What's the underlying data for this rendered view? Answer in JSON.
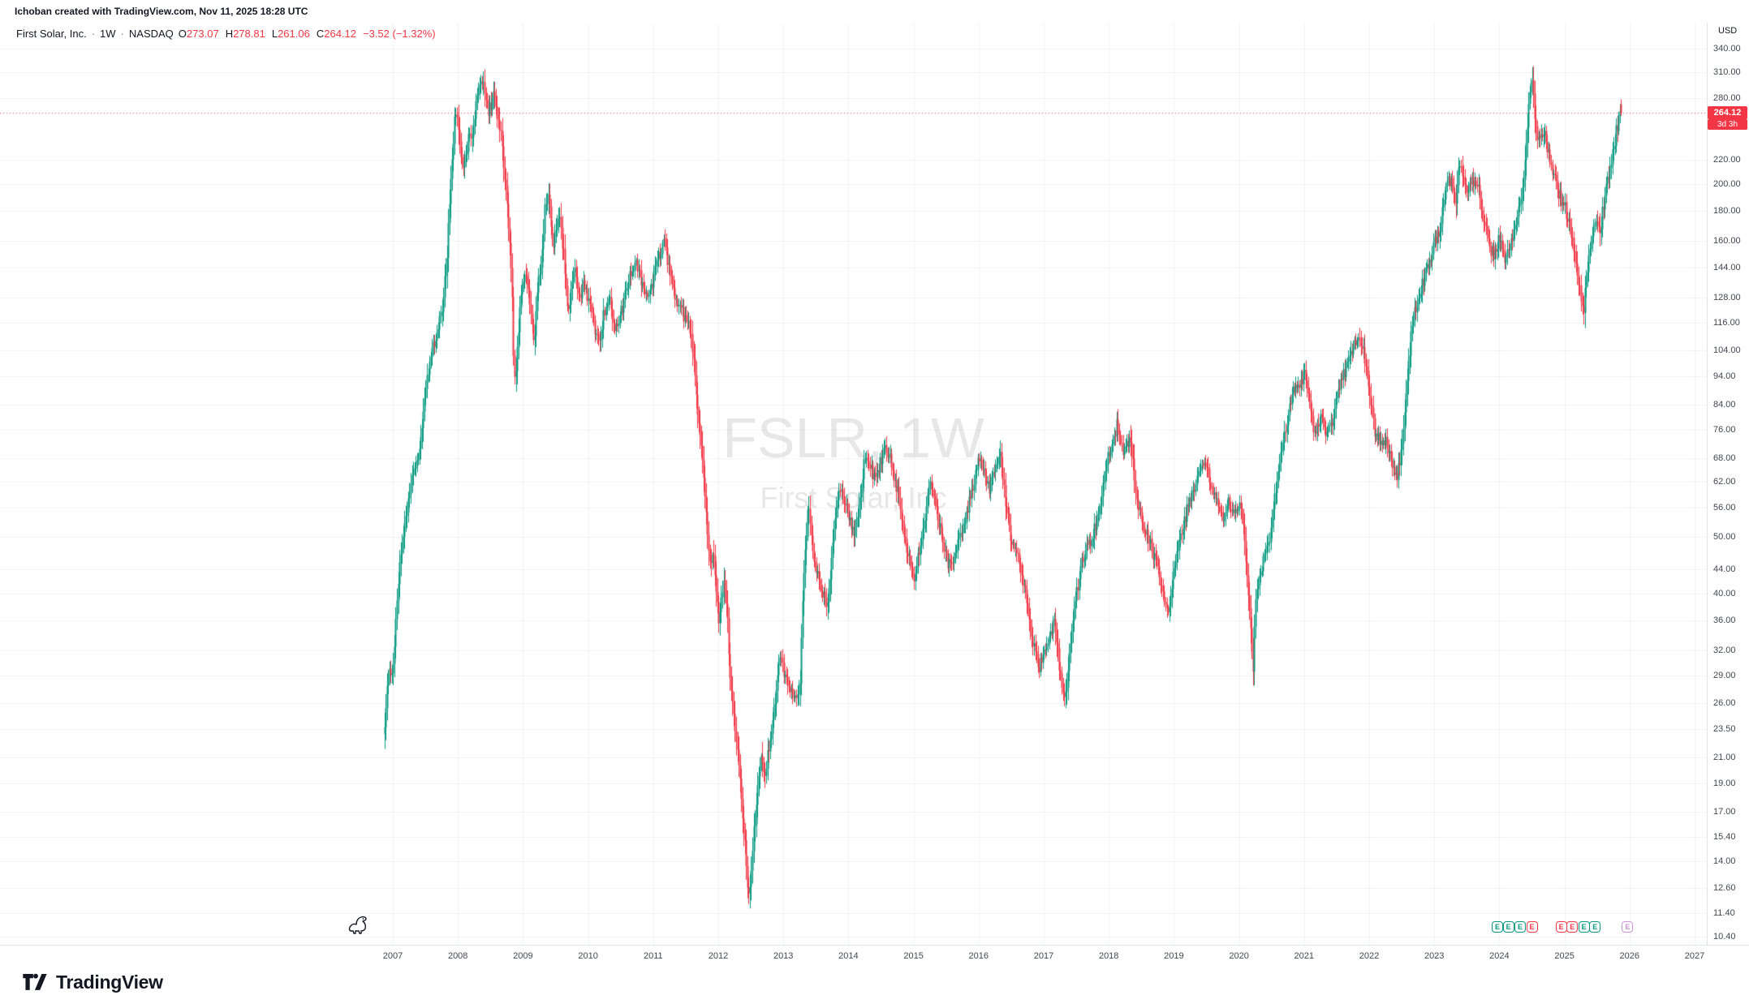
{
  "attribution": "Ichoban created with TradingView.com, Nov 11, 2025 18:28 UTC",
  "legend": {
    "symbol": "First Solar, Inc.",
    "sep": "·",
    "interval": "1W",
    "exchange": "NASDAQ",
    "o_label": "O",
    "o": "273.07",
    "h_label": "H",
    "h": "278.81",
    "l_label": "L",
    "l": "261.06",
    "c_label": "C",
    "c": "264.12",
    "change": "−3.52 (−1.32%)"
  },
  "watermark": {
    "line1": "FSLR, 1W",
    "line2": "First Solar, Inc"
  },
  "price_axis": {
    "currency": "USD",
    "ticks": [
      "340.00",
      "310.00",
      "280.00",
      "220.00",
      "200.00",
      "180.00",
      "160.00",
      "144.00",
      "128.00",
      "116.00",
      "104.00",
      "94.00",
      "84.00",
      "76.00",
      "68.00",
      "62.00",
      "56.00",
      "50.00",
      "44.00",
      "40.00",
      "36.00",
      "32.00",
      "29.00",
      "26.00",
      "23.50",
      "21.00",
      "19.00",
      "17.00",
      "15.40",
      "14.00",
      "12.60",
      "11.40",
      "10.40"
    ],
    "last_price": "264.12",
    "countdown": "3d 3h"
  },
  "time_axis": {
    "years": [
      "2007",
      "2008",
      "2009",
      "2010",
      "2011",
      "2012",
      "2013",
      "2014",
      "2015",
      "2016",
      "2017",
      "2018",
      "2019",
      "2020",
      "2021",
      "2022",
      "2023",
      "2024",
      "2025",
      "2026",
      "2027"
    ]
  },
  "earnings_markers": [
    {
      "t": 2023.97,
      "label": "E",
      "color": "#089981"
    },
    {
      "t": 2024.14,
      "label": "E",
      "color": "#089981"
    },
    {
      "t": 2024.32,
      "label": "E",
      "color": "#089981"
    },
    {
      "t": 2024.5,
      "label": "E",
      "color": "#f23645"
    },
    {
      "t": 2024.95,
      "label": "E",
      "color": "#f23645"
    },
    {
      "t": 2025.12,
      "label": "E",
      "color": "#f23645"
    },
    {
      "t": 2025.3,
      "label": "E",
      "color": "#089981"
    },
    {
      "t": 2025.47,
      "label": "E",
      "color": "#089981"
    },
    {
      "t": 2025.97,
      "label": "E",
      "color": "#ce93d8"
    }
  ],
  "footer": {
    "brand": "TradingView"
  },
  "colors": {
    "up": "#089981",
    "down": "#f23645",
    "accent_red": "#f23645",
    "grid": "rgba(42,46,57,0.06)",
    "axis_divider": "#e0e3eb",
    "axis_text": "#434651"
  },
  "chart_data": {
    "type": "candlestick",
    "symbol": "FSLR",
    "name": "First Solar, Inc.",
    "interval": "1W",
    "exchange": "NASDAQ",
    "currency": "USD",
    "scale": "log",
    "grid": true,
    "y_range": [
      10.4,
      340
    ],
    "x_range_years": [
      2006.6,
      2027.3
    ],
    "last_bar": {
      "open": 273.07,
      "high": 278.81,
      "low": 261.06,
      "close": 264.12,
      "change": -3.52,
      "change_pct": -1.32
    },
    "last_price": 264.12,
    "countdown": "3d 3h",
    "price_path": [
      [
        2006.87,
        24
      ],
      [
        2006.9,
        27
      ],
      [
        2006.94,
        29
      ],
      [
        2007.0,
        30
      ],
      [
        2007.08,
        42
      ],
      [
        2007.17,
        52
      ],
      [
        2007.25,
        60
      ],
      [
        2007.33,
        66
      ],
      [
        2007.42,
        72
      ],
      [
        2007.5,
        89
      ],
      [
        2007.58,
        100
      ],
      [
        2007.67,
        112
      ],
      [
        2007.75,
        121
      ],
      [
        2007.83,
        150
      ],
      [
        2007.88,
        200
      ],
      [
        2007.92,
        235
      ],
      [
        2007.96,
        265
      ],
      [
        2008.0,
        258
      ],
      [
        2008.04,
        225
      ],
      [
        2008.08,
        215
      ],
      [
        2008.13,
        230
      ],
      [
        2008.17,
        240
      ],
      [
        2008.21,
        236
      ],
      [
        2008.25,
        262
      ],
      [
        2008.29,
        275
      ],
      [
        2008.33,
        290
      ],
      [
        2008.38,
        308
      ],
      [
        2008.42,
        283
      ],
      [
        2008.46,
        265
      ],
      [
        2008.5,
        272
      ],
      [
        2008.54,
        288
      ],
      [
        2008.58,
        270
      ],
      [
        2008.63,
        252
      ],
      [
        2008.67,
        235
      ],
      [
        2008.71,
        210
      ],
      [
        2008.75,
        188
      ],
      [
        2008.79,
        160
      ],
      [
        2008.83,
        128
      ],
      [
        2008.85,
        100
      ],
      [
        2008.88,
        92
      ],
      [
        2008.92,
        110
      ],
      [
        2008.96,
        130
      ],
      [
        2009.0,
        138
      ],
      [
        2009.04,
        142
      ],
      [
        2009.08,
        134
      ],
      [
        2009.13,
        118
      ],
      [
        2009.17,
        108
      ],
      [
        2009.21,
        130
      ],
      [
        2009.25,
        140
      ],
      [
        2009.29,
        152
      ],
      [
        2009.33,
        182
      ],
      [
        2009.38,
        195
      ],
      [
        2009.42,
        172
      ],
      [
        2009.46,
        158
      ],
      [
        2009.5,
        165
      ],
      [
        2009.54,
        178
      ],
      [
        2009.58,
        168
      ],
      [
        2009.63,
        148
      ],
      [
        2009.67,
        125
      ],
      [
        2009.71,
        122
      ],
      [
        2009.75,
        135
      ],
      [
        2009.79,
        144
      ],
      [
        2009.83,
        132
      ],
      [
        2009.88,
        125
      ],
      [
        2009.92,
        134
      ],
      [
        2010.0,
        128
      ],
      [
        2010.08,
        115
      ],
      [
        2010.17,
        105
      ],
      [
        2010.25,
        122
      ],
      [
        2010.33,
        128
      ],
      [
        2010.42,
        112
      ],
      [
        2010.5,
        120
      ],
      [
        2010.58,
        132
      ],
      [
        2010.67,
        142
      ],
      [
        2010.75,
        146
      ],
      [
        2010.83,
        134
      ],
      [
        2010.92,
        130
      ],
      [
        2011.0,
        138
      ],
      [
        2011.08,
        152
      ],
      [
        2011.17,
        158
      ],
      [
        2011.25,
        142
      ],
      [
        2011.33,
        128
      ],
      [
        2011.42,
        122
      ],
      [
        2011.5,
        118
      ],
      [
        2011.58,
        112
      ],
      [
        2011.63,
        95
      ],
      [
        2011.67,
        82
      ],
      [
        2011.75,
        68
      ],
      [
        2011.83,
        52
      ],
      [
        2011.88,
        44
      ],
      [
        2011.92,
        48
      ],
      [
        2011.96,
        42
      ],
      [
        2012.0,
        36
      ],
      [
        2012.08,
        42
      ],
      [
        2012.13,
        38
      ],
      [
        2012.17,
        30
      ],
      [
        2012.25,
        24
      ],
      [
        2012.33,
        19
      ],
      [
        2012.42,
        14.5
      ],
      [
        2012.46,
        11.9
      ],
      [
        2012.5,
        13.5
      ],
      [
        2012.54,
        15.5
      ],
      [
        2012.58,
        17.5
      ],
      [
        2012.63,
        20
      ],
      [
        2012.67,
        21.5
      ],
      [
        2012.71,
        19.5
      ],
      [
        2012.75,
        21
      ],
      [
        2012.83,
        24
      ],
      [
        2012.88,
        26.5
      ],
      [
        2012.92,
        30
      ],
      [
        2012.96,
        31.5
      ],
      [
        2013.0,
        29.5
      ],
      [
        2013.08,
        28
      ],
      [
        2013.17,
        26
      ],
      [
        2013.25,
        27.5
      ],
      [
        2013.29,
        39
      ],
      [
        2013.33,
        46
      ],
      [
        2013.38,
        57
      ],
      [
        2013.42,
        50
      ],
      [
        2013.46,
        46
      ],
      [
        2013.5,
        44
      ],
      [
        2013.58,
        41
      ],
      [
        2013.67,
        38
      ],
      [
        2013.75,
        47
      ],
      [
        2013.83,
        58
      ],
      [
        2013.88,
        62
      ],
      [
        2013.92,
        59
      ],
      [
        2014.0,
        54
      ],
      [
        2014.08,
        50
      ],
      [
        2014.17,
        57
      ],
      [
        2014.25,
        69
      ],
      [
        2014.33,
        66
      ],
      [
        2014.42,
        62
      ],
      [
        2014.5,
        68
      ],
      [
        2014.58,
        71
      ],
      [
        2014.67,
        66
      ],
      [
        2014.75,
        60
      ],
      [
        2014.83,
        52
      ],
      [
        2014.92,
        46
      ],
      [
        2015.0,
        42
      ],
      [
        2015.08,
        47
      ],
      [
        2015.17,
        54
      ],
      [
        2015.25,
        61
      ],
      [
        2015.33,
        57
      ],
      [
        2015.42,
        51
      ],
      [
        2015.5,
        46
      ],
      [
        2015.58,
        44
      ],
      [
        2015.67,
        48
      ],
      [
        2015.75,
        52
      ],
      [
        2015.83,
        56
      ],
      [
        2015.92,
        62
      ],
      [
        2016.0,
        68
      ],
      [
        2016.08,
        64
      ],
      [
        2016.17,
        60
      ],
      [
        2016.25,
        66
      ],
      [
        2016.33,
        69
      ],
      [
        2016.42,
        56
      ],
      [
        2016.5,
        49
      ],
      [
        2016.58,
        47
      ],
      [
        2016.67,
        42
      ],
      [
        2016.75,
        38
      ],
      [
        2016.83,
        33
      ],
      [
        2016.92,
        30
      ],
      [
        2017.0,
        32
      ],
      [
        2017.08,
        34
      ],
      [
        2017.17,
        36
      ],
      [
        2017.25,
        29
      ],
      [
        2017.33,
        26.5
      ],
      [
        2017.42,
        34
      ],
      [
        2017.5,
        40
      ],
      [
        2017.58,
        45
      ],
      [
        2017.67,
        48
      ],
      [
        2017.75,
        50
      ],
      [
        2017.83,
        55
      ],
      [
        2017.92,
        62
      ],
      [
        2018.0,
        70
      ],
      [
        2018.08,
        74
      ],
      [
        2018.13,
        78
      ],
      [
        2018.17,
        72
      ],
      [
        2018.25,
        70
      ],
      [
        2018.33,
        74
      ],
      [
        2018.42,
        58
      ],
      [
        2018.5,
        53
      ],
      [
        2018.58,
        51
      ],
      [
        2018.67,
        47
      ],
      [
        2018.75,
        44
      ],
      [
        2018.83,
        40
      ],
      [
        2018.92,
        37
      ],
      [
        2019.0,
        44
      ],
      [
        2019.08,
        50
      ],
      [
        2019.17,
        54
      ],
      [
        2019.25,
        58
      ],
      [
        2019.33,
        62
      ],
      [
        2019.42,
        65
      ],
      [
        2019.5,
        67
      ],
      [
        2019.58,
        60
      ],
      [
        2019.67,
        57
      ],
      [
        2019.75,
        54
      ],
      [
        2019.83,
        57
      ],
      [
        2019.92,
        55
      ],
      [
        2020.0,
        57
      ],
      [
        2020.08,
        50
      ],
      [
        2020.17,
        36
      ],
      [
        2020.21,
        29
      ],
      [
        2020.25,
        38
      ],
      [
        2020.33,
        44
      ],
      [
        2020.42,
        47
      ],
      [
        2020.5,
        52
      ],
      [
        2020.58,
        63
      ],
      [
        2020.67,
        72
      ],
      [
        2020.75,
        80
      ],
      [
        2020.83,
        88
      ],
      [
        2020.92,
        90
      ],
      [
        2021.0,
        96
      ],
      [
        2021.08,
        84
      ],
      [
        2021.17,
        74
      ],
      [
        2021.25,
        80
      ],
      [
        2021.33,
        76
      ],
      [
        2021.42,
        78
      ],
      [
        2021.5,
        88
      ],
      [
        2021.58,
        94
      ],
      [
        2021.67,
        99
      ],
      [
        2021.75,
        106
      ],
      [
        2021.83,
        110
      ],
      [
        2021.92,
        102
      ],
      [
        2022.0,
        88
      ],
      [
        2022.08,
        76
      ],
      [
        2022.17,
        72
      ],
      [
        2022.25,
        74
      ],
      [
        2022.33,
        68
      ],
      [
        2022.42,
        63
      ],
      [
        2022.5,
        70
      ],
      [
        2022.58,
        94
      ],
      [
        2022.67,
        118
      ],
      [
        2022.75,
        128
      ],
      [
        2022.83,
        136
      ],
      [
        2022.92,
        148
      ],
      [
        2023.0,
        158
      ],
      [
        2023.08,
        166
      ],
      [
        2023.17,
        196
      ],
      [
        2023.25,
        204
      ],
      [
        2023.33,
        188
      ],
      [
        2023.38,
        222
      ],
      [
        2023.42,
        214
      ],
      [
        2023.5,
        192
      ],
      [
        2023.58,
        206
      ],
      [
        2023.67,
        196
      ],
      [
        2023.75,
        176
      ],
      [
        2023.83,
        158
      ],
      [
        2023.92,
        150
      ],
      [
        2024.0,
        164
      ],
      [
        2024.08,
        148
      ],
      [
        2024.17,
        158
      ],
      [
        2024.25,
        172
      ],
      [
        2024.33,
        186
      ],
      [
        2024.42,
        238
      ],
      [
        2024.46,
        290
      ],
      [
        2024.5,
        300
      ],
      [
        2024.54,
        268
      ],
      [
        2024.58,
        232
      ],
      [
        2024.67,
        248
      ],
      [
        2024.75,
        224
      ],
      [
        2024.83,
        208
      ],
      [
        2024.92,
        192
      ],
      [
        2025.0,
        182
      ],
      [
        2025.08,
        168
      ],
      [
        2025.17,
        148
      ],
      [
        2025.25,
        128
      ],
      [
        2025.29,
        122
      ],
      [
        2025.33,
        138
      ],
      [
        2025.42,
        162
      ],
      [
        2025.5,
        172
      ],
      [
        2025.54,
        162
      ],
      [
        2025.58,
        180
      ],
      [
        2025.67,
        205
      ],
      [
        2025.75,
        228
      ],
      [
        2025.79,
        244
      ],
      [
        2025.83,
        258
      ],
      [
        2025.87,
        264.12
      ]
    ]
  }
}
